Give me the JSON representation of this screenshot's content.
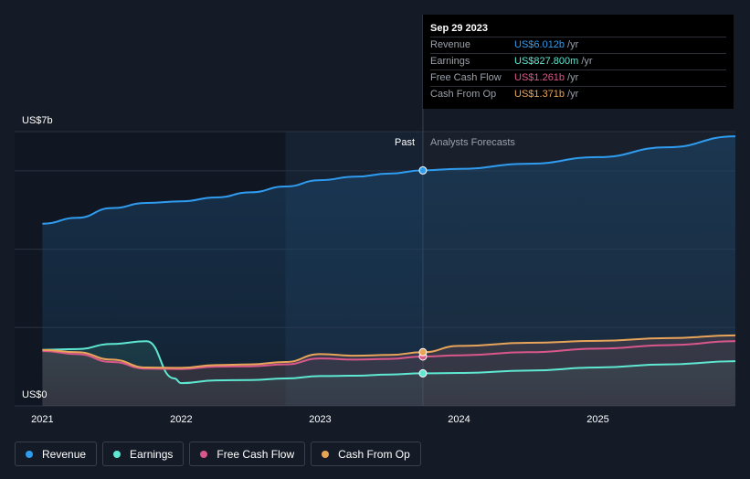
{
  "tooltip": {
    "date": "Sep 29 2023",
    "rows": [
      {
        "name": "Revenue",
        "value": "US$6.012b",
        "unit": "/yr",
        "color": "#2f9cf0"
      },
      {
        "name": "Earnings",
        "value": "US$827.800m",
        "unit": "/yr",
        "color": "#5ee8d2"
      },
      {
        "name": "Free Cash Flow",
        "value": "US$1.261b",
        "unit": "/yr",
        "color": "#d9578a"
      },
      {
        "name": "Cash From Op",
        "value": "US$1.371b",
        "unit": "/yr",
        "color": "#e8a55a"
      }
    ]
  },
  "regions": {
    "past": "Past",
    "forecast": "Analysts Forecasts"
  },
  "legend": [
    {
      "label": "Revenue",
      "color": "#2f9cf0"
    },
    {
      "label": "Earnings",
      "color": "#5ee8d2"
    },
    {
      "label": "Free Cash Flow",
      "color": "#d9578a"
    },
    {
      "label": "Cash From Op",
      "color": "#e8a55a"
    }
  ],
  "chart_data": {
    "type": "line",
    "y_axis": {
      "min_label": "US$0",
      "max_label": "US$7b",
      "ylim": [
        0,
        7
      ],
      "unit": "US$ billions"
    },
    "x_axis": {
      "ticks": [
        "2021",
        "2022",
        "2023",
        "2024",
        "2025"
      ],
      "xlim": [
        2020.8,
        2025.99
      ]
    },
    "past_start": 2022.75,
    "divider_x": 2023.74,
    "series": [
      {
        "name": "Revenue",
        "color": "#2f9cf0",
        "points": [
          [
            2021.0,
            4.65
          ],
          [
            2021.25,
            4.8
          ],
          [
            2021.5,
            5.05
          ],
          [
            2021.75,
            5.18
          ],
          [
            2022.0,
            5.22
          ],
          [
            2022.25,
            5.32
          ],
          [
            2022.5,
            5.45
          ],
          [
            2022.75,
            5.6
          ],
          [
            2023.0,
            5.76
          ],
          [
            2023.25,
            5.85
          ],
          [
            2023.5,
            5.93
          ],
          [
            2023.74,
            6.01
          ],
          [
            2024.0,
            6.05
          ],
          [
            2024.5,
            6.18
          ],
          [
            2025.0,
            6.35
          ],
          [
            2025.5,
            6.6
          ],
          [
            2025.99,
            6.88
          ]
        ]
      },
      {
        "name": "Earnings",
        "color": "#5ee8d2",
        "points": [
          [
            2021.0,
            1.43
          ],
          [
            2021.25,
            1.45
          ],
          [
            2021.5,
            1.58
          ],
          [
            2021.75,
            1.65
          ],
          [
            2021.95,
            0.7
          ],
          [
            2022.0,
            0.58
          ],
          [
            2022.25,
            0.65
          ],
          [
            2022.5,
            0.66
          ],
          [
            2022.75,
            0.7
          ],
          [
            2023.0,
            0.76
          ],
          [
            2023.25,
            0.77
          ],
          [
            2023.5,
            0.8
          ],
          [
            2023.74,
            0.83
          ],
          [
            2024.0,
            0.84
          ],
          [
            2024.5,
            0.9
          ],
          [
            2025.0,
            0.98
          ],
          [
            2025.5,
            1.06
          ],
          [
            2025.99,
            1.14
          ]
        ]
      },
      {
        "name": "Free Cash Flow",
        "color": "#d9578a",
        "points": [
          [
            2021.0,
            1.4
          ],
          [
            2021.25,
            1.32
          ],
          [
            2021.5,
            1.12
          ],
          [
            2021.75,
            0.95
          ],
          [
            2022.0,
            0.94
          ],
          [
            2022.25,
            1.0
          ],
          [
            2022.5,
            1.01
          ],
          [
            2022.75,
            1.06
          ],
          [
            2023.0,
            1.21
          ],
          [
            2023.25,
            1.18
          ],
          [
            2023.5,
            1.2
          ],
          [
            2023.74,
            1.26
          ],
          [
            2024.0,
            1.29
          ],
          [
            2024.5,
            1.37
          ],
          [
            2025.0,
            1.46
          ],
          [
            2025.5,
            1.55
          ],
          [
            2025.99,
            1.65
          ]
        ]
      },
      {
        "name": "Cash From Op",
        "color": "#e8a55a",
        "points": [
          [
            2021.0,
            1.43
          ],
          [
            2021.25,
            1.37
          ],
          [
            2021.5,
            1.18
          ],
          [
            2021.75,
            0.98
          ],
          [
            2022.0,
            0.97
          ],
          [
            2022.25,
            1.04
          ],
          [
            2022.5,
            1.06
          ],
          [
            2022.75,
            1.12
          ],
          [
            2023.0,
            1.32
          ],
          [
            2023.25,
            1.28
          ],
          [
            2023.5,
            1.3
          ],
          [
            2023.74,
            1.37
          ],
          [
            2024.0,
            1.53
          ],
          [
            2024.5,
            1.61
          ],
          [
            2025.0,
            1.66
          ],
          [
            2025.5,
            1.73
          ],
          [
            2025.99,
            1.8
          ]
        ]
      }
    ],
    "highlight": [
      {
        "series": "Revenue",
        "x": 2023.74,
        "y": 6.01
      },
      {
        "series": "Earnings",
        "x": 2023.74,
        "y": 0.83
      },
      {
        "series": "Free Cash Flow",
        "x": 2023.74,
        "y": 1.26
      },
      {
        "series": "Cash From Op",
        "x": 2023.74,
        "y": 1.37
      }
    ],
    "grid": true
  }
}
